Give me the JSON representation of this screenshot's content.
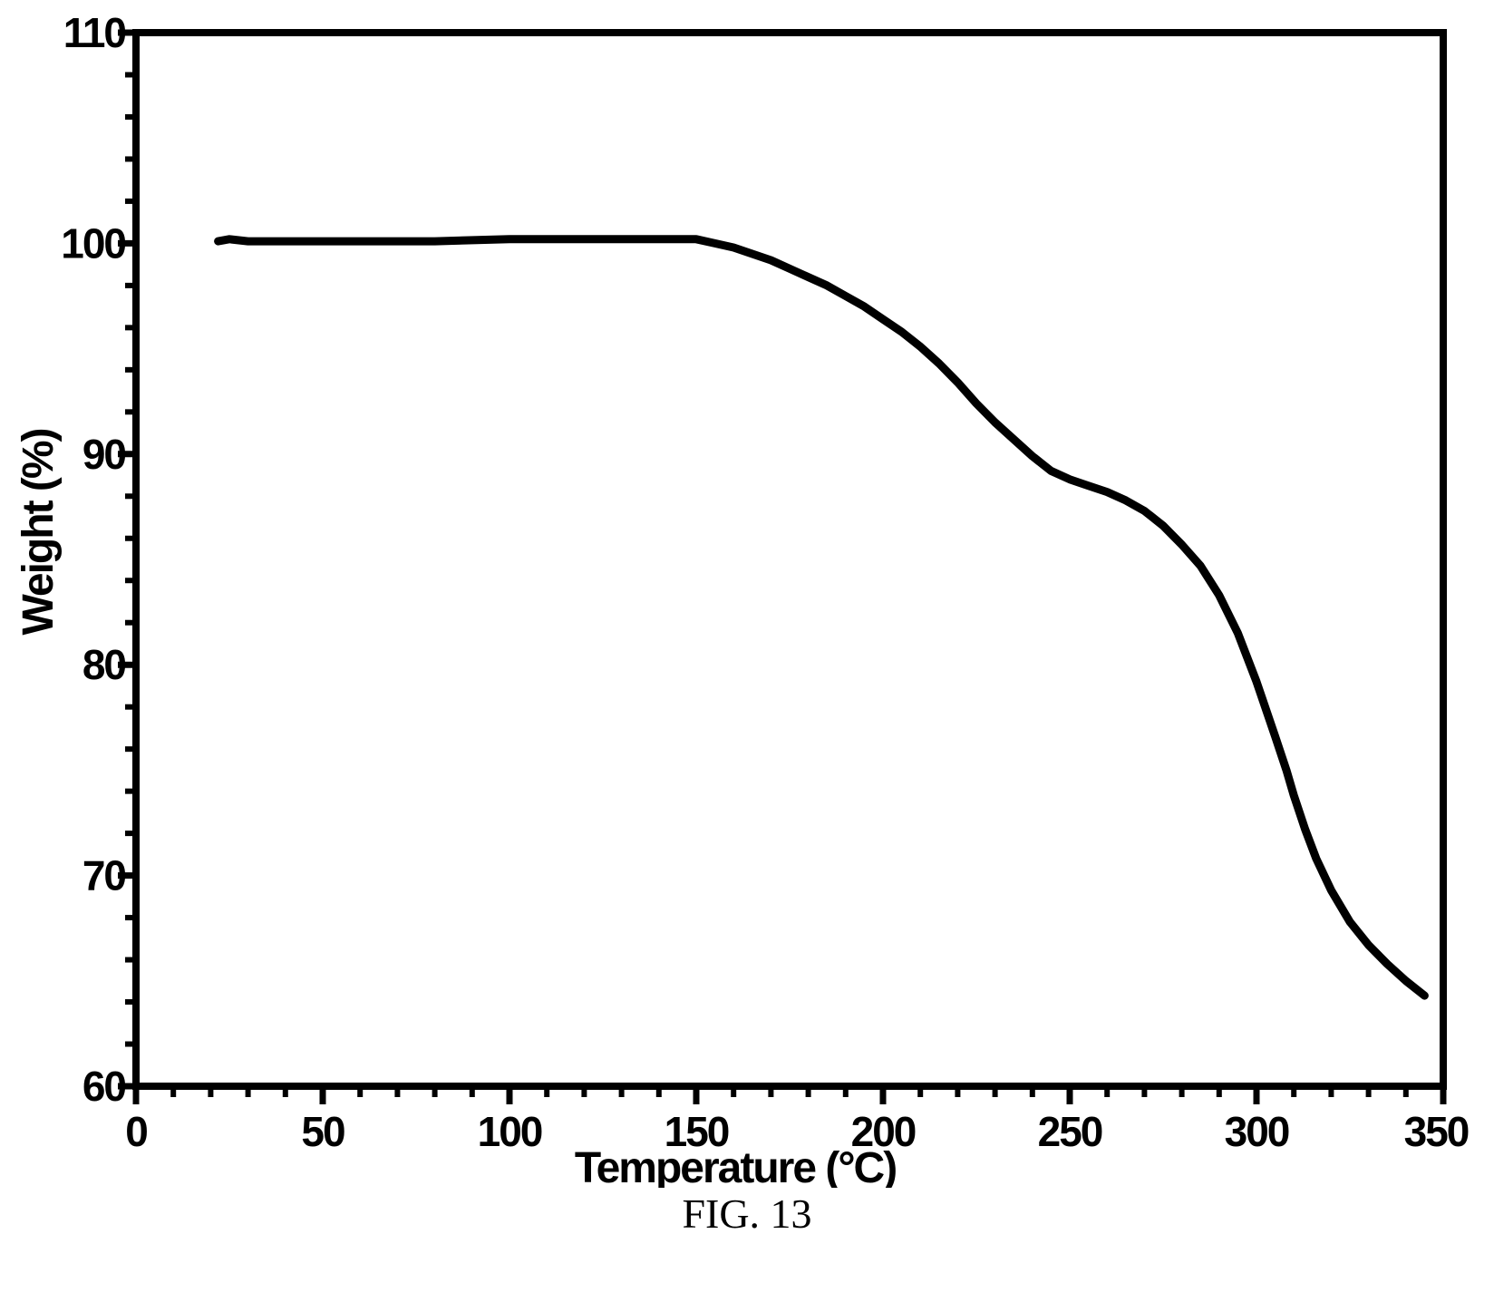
{
  "chart_data": {
    "type": "line",
    "xlabel": "Temperature (°C)",
    "ylabel": "Weight (%)",
    "xlim": [
      0,
      350
    ],
    "ylim": [
      60,
      110
    ],
    "xticks": [
      0,
      50,
      100,
      150,
      200,
      250,
      300,
      350
    ],
    "yticks": [
      60,
      70,
      80,
      90,
      100,
      110
    ],
    "grid": false,
    "series": [
      {
        "x": [
          22,
          25,
          30,
          40,
          50,
          60,
          80,
          100,
          120,
          140,
          150,
          155,
          160,
          165,
          170,
          175,
          180,
          185,
          190,
          195,
          200,
          205,
          210,
          215,
          220,
          225,
          230,
          235,
          240,
          245,
          250,
          255,
          260,
          265,
          270,
          275,
          280,
          285,
          290,
          295,
          300,
          305,
          308,
          310,
          313,
          316,
          320,
          325,
          330,
          335,
          340,
          345
        ],
        "y": [
          100.1,
          100.2,
          100.1,
          100.1,
          100.1,
          100.1,
          100.1,
          100.2,
          100.2,
          100.2,
          100.2,
          100.0,
          99.8,
          99.5,
          99.2,
          98.8,
          98.4,
          98.0,
          97.5,
          97.0,
          96.4,
          95.8,
          95.1,
          94.3,
          93.4,
          92.4,
          91.5,
          90.7,
          89.9,
          89.2,
          88.8,
          88.5,
          88.2,
          87.8,
          87.3,
          86.6,
          85.7,
          84.7,
          83.3,
          81.5,
          79.2,
          76.6,
          75.0,
          73.8,
          72.2,
          70.8,
          69.3,
          67.8,
          66.7,
          65.8,
          65.0,
          64.3
        ],
        "color": "#000000"
      }
    ]
  },
  "caption": "FIG. 13"
}
